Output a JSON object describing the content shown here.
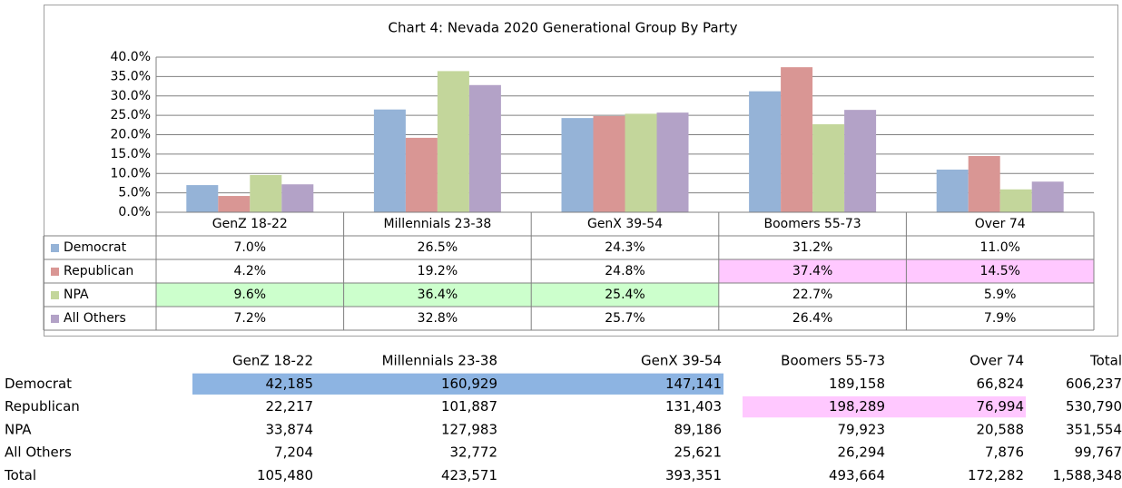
{
  "chart_data": {
    "type": "bar",
    "title": "Chart 4:  Nevada 2020 Generational Group  By Party",
    "categories": [
      "GenZ 18-22",
      "Millennials 23-38",
      "GenX 39-54",
      "Boomers 55-73",
      "Over 74"
    ],
    "series": [
      {
        "name": "Democrat",
        "color": "#95b3d7",
        "values": [
          7.0,
          26.5,
          24.3,
          31.2,
          11.0
        ],
        "value_labels": [
          "7.0%",
          "26.5%",
          "24.3%",
          "31.2%",
          "11.0%"
        ]
      },
      {
        "name": "Republican",
        "color": "#d99694",
        "values": [
          4.2,
          19.2,
          24.8,
          37.4,
          14.5
        ],
        "value_labels": [
          "4.2%",
          "19.2%",
          "24.8%",
          "37.4%",
          "14.5%"
        ],
        "highlight": {
          "color": "#ffc8ff",
          "indices": [
            3,
            4
          ]
        }
      },
      {
        "name": "NPA",
        "color": "#c3d69b",
        "values": [
          9.6,
          36.4,
          25.4,
          22.7,
          5.9
        ],
        "value_labels": [
          "9.6%",
          "36.4%",
          "25.4%",
          "22.7%",
          "5.9%"
        ],
        "highlight": {
          "color": "#ccffcc",
          "indices": [
            0,
            1,
            2
          ]
        }
      },
      {
        "name": "All Others",
        "color": "#b3a2c7",
        "values": [
          7.2,
          32.8,
          25.7,
          26.4,
          7.9
        ],
        "value_labels": [
          "7.2%",
          "32.8%",
          "25.7%",
          "26.4%",
          "7.9%"
        ]
      }
    ],
    "ylim": [
      0,
      40
    ],
    "yticks": [
      {
        "value": 0,
        "label": "0.0%"
      },
      {
        "value": 5,
        "label": "5.0%"
      },
      {
        "value": 10,
        "label": "10.0%"
      },
      {
        "value": 15,
        "label": "15.0%"
      },
      {
        "value": 20,
        "label": "20.0%"
      },
      {
        "value": 25,
        "label": "25.0%"
      },
      {
        "value": 30,
        "label": "30.0%"
      },
      {
        "value": 35,
        "label": "35.0%"
      },
      {
        "value": 40,
        "label": "40.0%"
      }
    ],
    "grid": true
  },
  "table": {
    "columns": [
      "GenZ 18-22",
      "Millennials 23-38",
      "GenX 39-54",
      "Boomers 55-73",
      "Over 74",
      "Total"
    ],
    "rows": [
      {
        "label": "Democrat",
        "cells": [
          "42,185",
          "160,929",
          "147,141",
          "189,158",
          "66,824",
          "606,237"
        ],
        "highlight": {
          "color": "#8db4e2",
          "indices": [
            0,
            1,
            2
          ]
        }
      },
      {
        "label": "Republican",
        "cells": [
          "22,217",
          "101,887",
          "131,403",
          "198,289",
          "76,994",
          "530,790"
        ],
        "highlight": {
          "color": "#ffc8ff",
          "indices": [
            3,
            4
          ]
        }
      },
      {
        "label": "NPA",
        "cells": [
          "33,874",
          "127,983",
          "89,186",
          "79,923",
          "20,588",
          "351,554"
        ]
      },
      {
        "label": "All Others",
        "cells": [
          "7,204",
          "32,772",
          "25,621",
          "26,294",
          "7,876",
          "99,767"
        ]
      },
      {
        "label": "Total",
        "cells": [
          "105,480",
          "423,571",
          "393,351",
          "493,664",
          "172,282",
          "1,588,348"
        ]
      }
    ]
  }
}
